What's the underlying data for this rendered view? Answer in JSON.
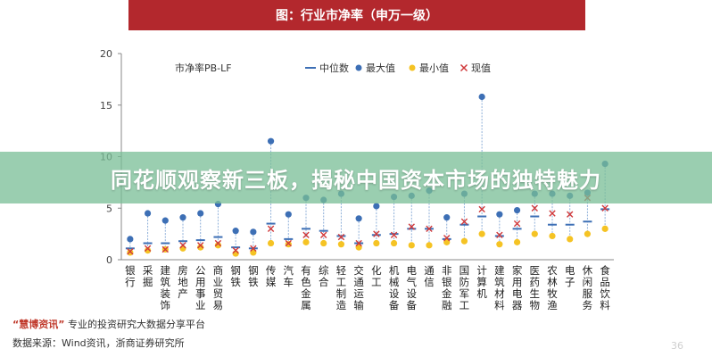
{
  "header": {
    "title": "图：行业市净率（申万一级）"
  },
  "banner": {
    "text": "同花顺观察新三板，揭秘中国资本市场的独特魅力"
  },
  "footer": {
    "brand": "“慧博资讯”",
    "line1_rest": "专业的投资研究大数据分享平台",
    "line2": "数据来源：Wind资讯，浙商证券研究所"
  },
  "page_number": "36",
  "chart_data": {
    "type": "scatter",
    "title": "市净率PB-LF",
    "ylim": [
      0,
      20
    ],
    "yticks": [
      0,
      5,
      10,
      15,
      20
    ],
    "legend": [
      "中位数",
      "最大值",
      "最小值",
      "现值"
    ],
    "colors": {
      "median": "#3d6fb5",
      "max": "#3d6fb5",
      "min": "#f5c324",
      "current": "#d0393b",
      "range_line": "#8fb0d9"
    },
    "categories": [
      "银行",
      "采掘",
      "建筑装饰",
      "房地产",
      "公用事业",
      "商业贸易",
      "钢铁",
      "钢铁",
      "传媒",
      "汽车",
      "有色金属",
      "综合",
      "轻工制造",
      "交通运输",
      "化工",
      "机械设备",
      "电气设备",
      "通信",
      "非银金融",
      "国防军工",
      "计算机",
      "建筑材料",
      "家用电器",
      "医药生物",
      "农林牧渔",
      "电子",
      "休闲服务",
      "食品饮料"
    ],
    "series": [
      {
        "name": "中位数",
        "values": [
          1.1,
          1.6,
          1.6,
          1.8,
          1.9,
          2.2,
          1.2,
          1.1,
          3.5,
          2.0,
          3.0,
          2.8,
          2.3,
          1.6,
          2.4,
          2.5,
          3.0,
          3.0,
          2.0,
          3.4,
          4.2,
          2.3,
          3.0,
          4.2,
          3.4,
          3.4,
          3.7,
          4.9
        ]
      },
      {
        "name": "最大值",
        "values": [
          2.0,
          4.5,
          3.8,
          4.1,
          4.5,
          5.4,
          2.8,
          2.7,
          11.5,
          4.4,
          6.0,
          5.8,
          6.4,
          4.0,
          5.2,
          6.1,
          6.2,
          6.7,
          4.1,
          6.4,
          15.8,
          4.4,
          4.8,
          6.4,
          6.4,
          6.2,
          6.5,
          9.3
        ]
      },
      {
        "name": "最小值",
        "values": [
          0.7,
          0.9,
          1.0,
          1.1,
          1.2,
          1.4,
          0.6,
          0.7,
          1.6,
          1.5,
          1.7,
          1.6,
          1.5,
          1.2,
          1.6,
          1.6,
          1.4,
          1.4,
          1.7,
          1.8,
          2.5,
          1.5,
          1.7,
          2.5,
          2.3,
          2.0,
          2.5,
          3.0
        ]
      },
      {
        "name": "现值",
        "values": [
          0.8,
          1.1,
          1.0,
          1.4,
          1.4,
          1.6,
          0.9,
          1.1,
          3.0,
          1.6,
          2.4,
          2.4,
          2.2,
          1.6,
          2.5,
          2.4,
          3.2,
          3.0,
          2.1,
          3.7,
          4.9,
          2.4,
          3.5,
          5.0,
          4.5,
          4.4,
          6.0,
          5.0
        ]
      }
    ]
  }
}
